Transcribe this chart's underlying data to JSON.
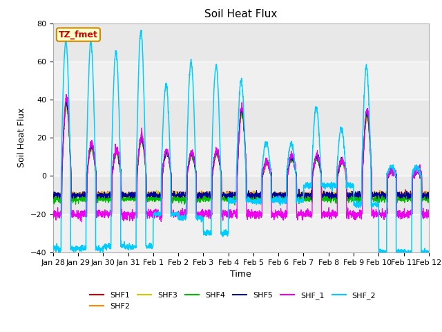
{
  "title": "Soil Heat Flux",
  "ylabel": "Soil Heat Flux",
  "xlabel": "Time",
  "ylim": [
    -40,
    80
  ],
  "fig_bg_color": "#ffffff",
  "plot_bg_color": "#e8e8e8",
  "grid_color": "#ffffff",
  "series_colors": {
    "SHF1": "#cc0000",
    "SHF2": "#ff8800",
    "SHF3": "#cccc00",
    "SHF4": "#00bb00",
    "SHF5": "#000099",
    "SHF_1": "#ee00ee",
    "SHF_2": "#00ccff"
  },
  "annotation_text": "TZ_fmet",
  "annotation_bg": "#ffffcc",
  "annotation_border": "#cc8800",
  "annotation_text_color": "#cc0000",
  "n_days": 15,
  "points_per_day": 144,
  "day_labels": [
    "Jan 28",
    "Jan 29",
    "Jan 30",
    "Jan 31",
    "Feb 1",
    "Feb 2",
    "Feb 3",
    "Feb 4",
    "Feb 5",
    "Feb 6",
    "Feb 7",
    "Feb 8",
    "Feb 9",
    "Feb 10",
    "Feb 11",
    "Feb 12"
  ],
  "legend_entries": [
    "SHF1",
    "SHF2",
    "SHF3",
    "SHF4",
    "SHF5",
    "SHF_1",
    "SHF_2"
  ],
  "shf2_day_peaks": [
    71,
    70,
    65,
    76,
    48,
    60,
    58,
    50,
    18,
    17,
    36,
    25,
    57,
    5,
    5
  ],
  "shf2_night_vals": [
    -38,
    -38,
    -37,
    -37,
    -20,
    -22,
    -30,
    -13,
    -13,
    -13,
    -5,
    -5,
    -15,
    -40,
    -40
  ],
  "small_day_peaks": [
    39,
    16,
    13,
    20,
    13,
    12,
    13,
    35,
    7,
    10,
    10,
    8,
    33,
    3,
    3
  ]
}
